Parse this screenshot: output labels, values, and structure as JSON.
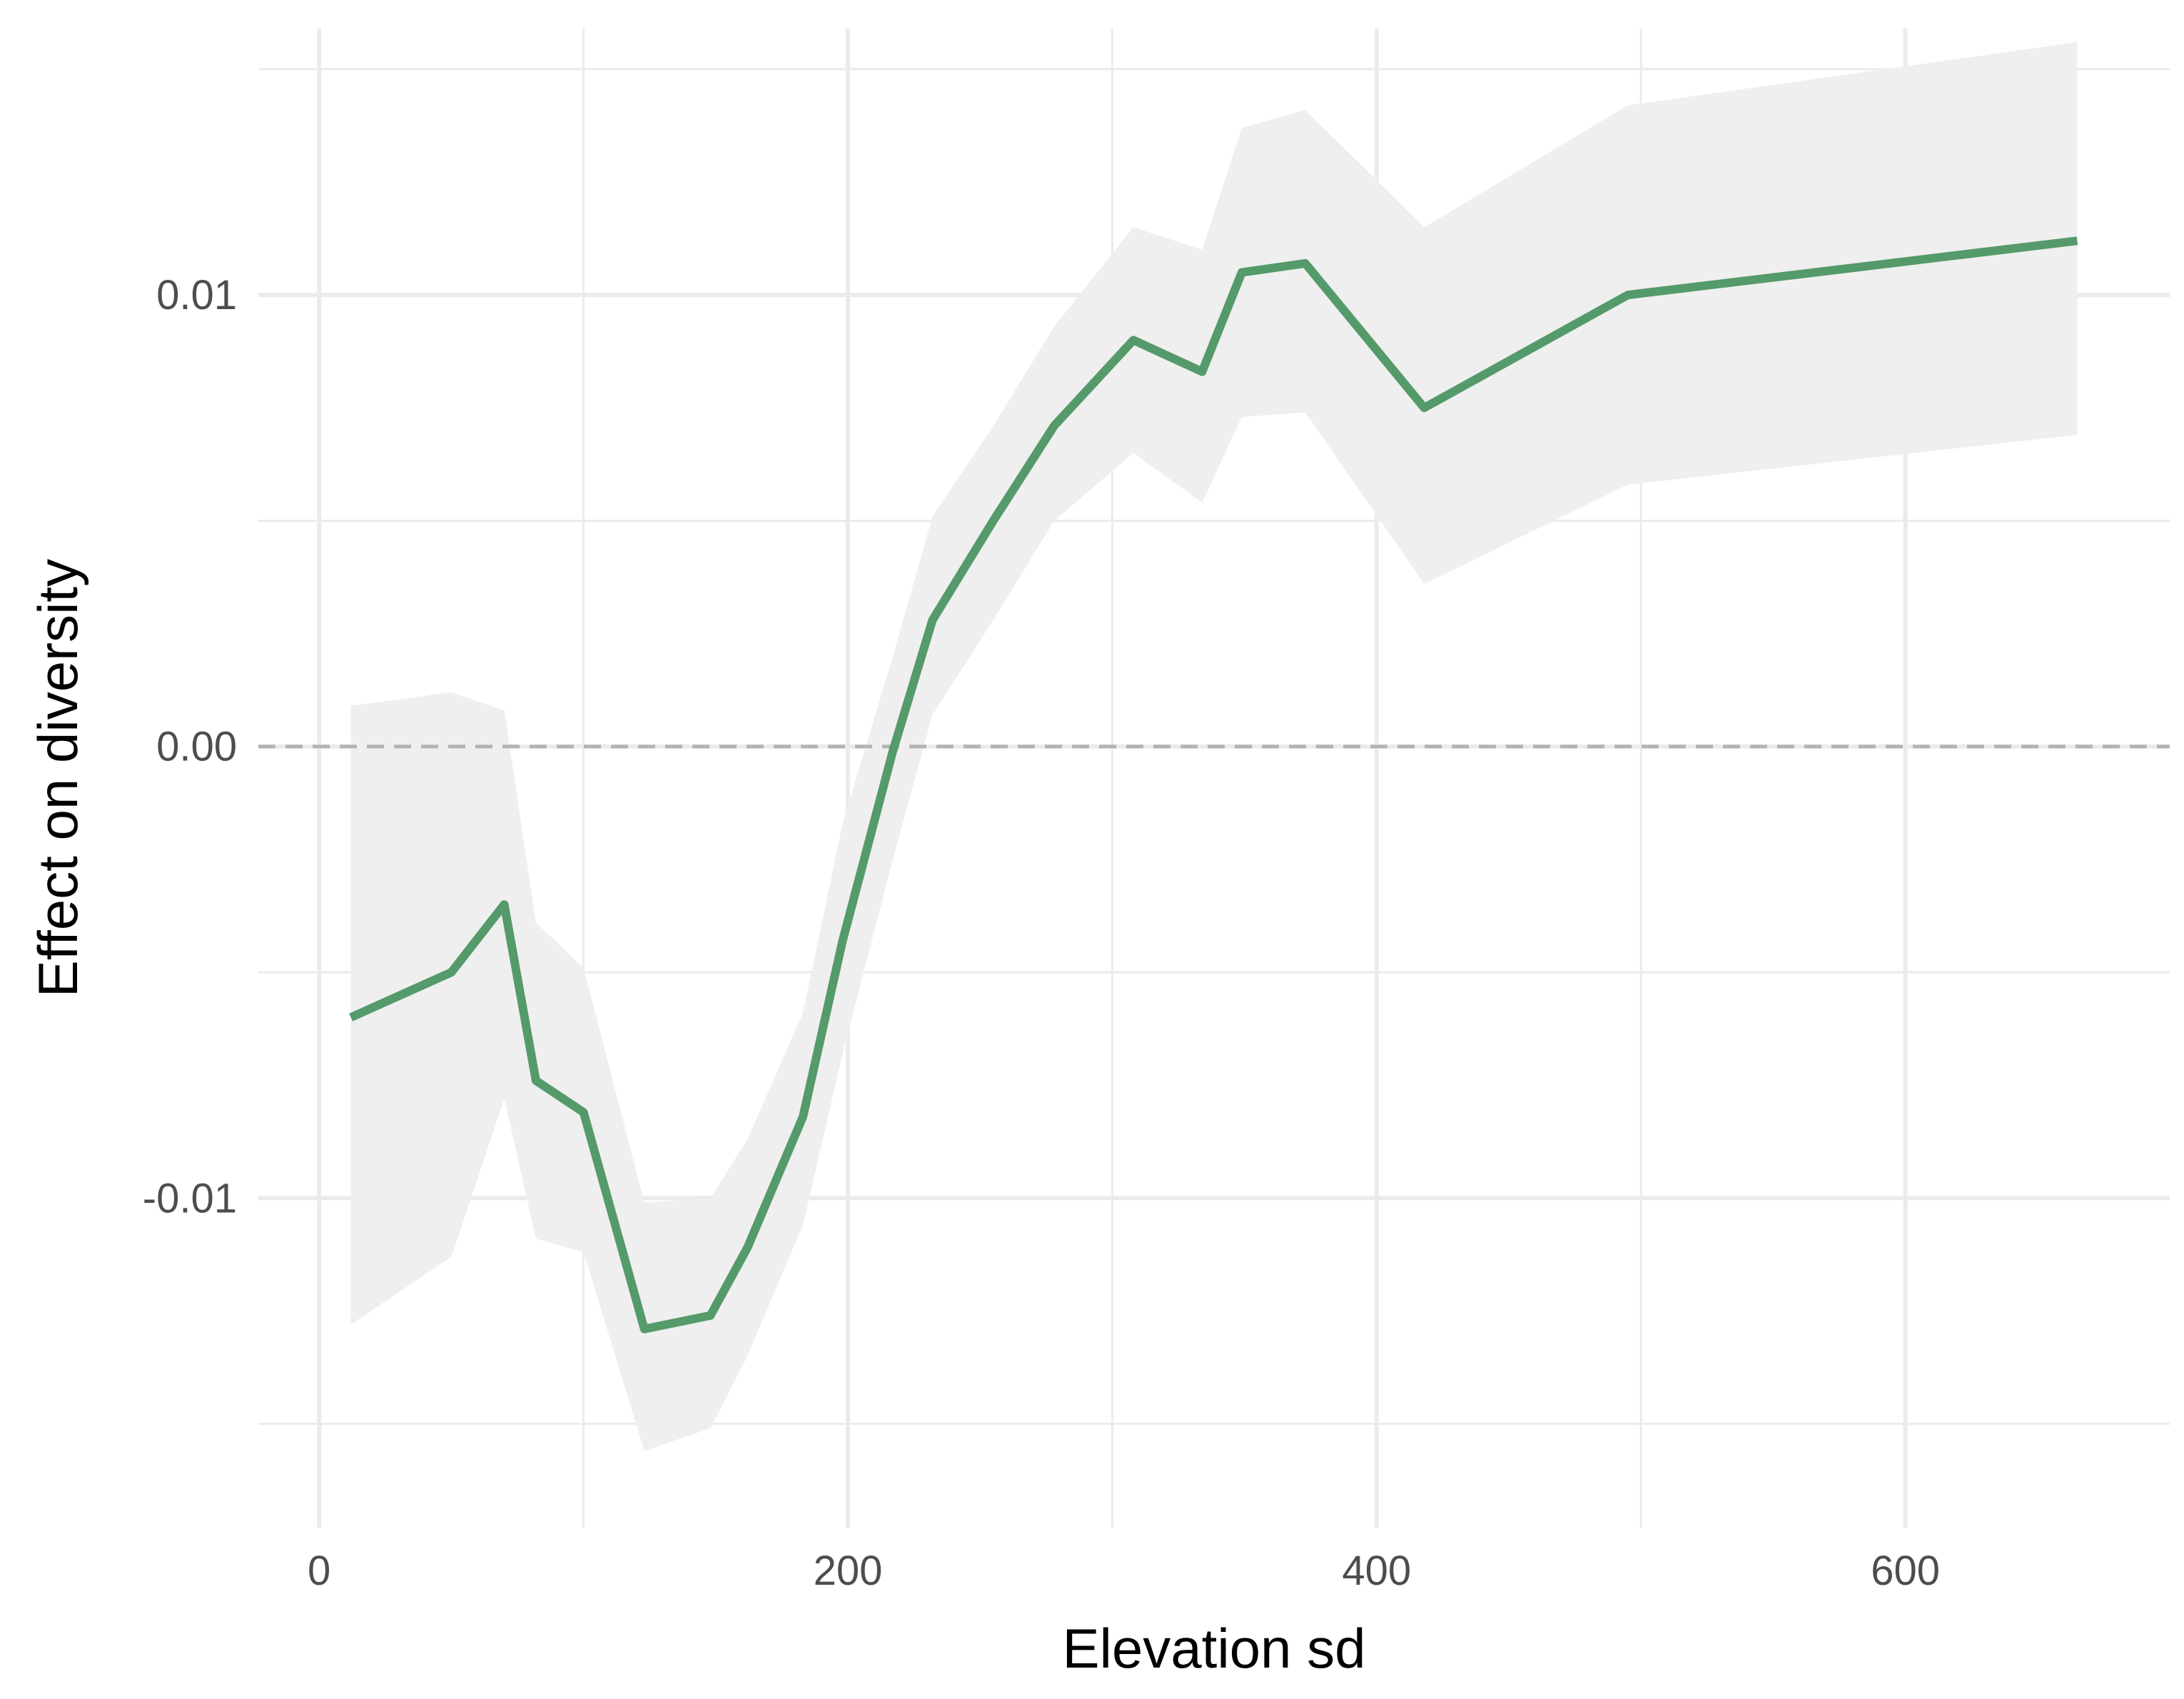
{
  "chart_data": {
    "type": "line",
    "title": "",
    "xlabel": "Elevation sd",
    "ylabel": "Effect on diversity",
    "xlim": [
      -23,
      700
    ],
    "ylim": [
      -0.0173,
      0.0159
    ],
    "x_ticks": [
      0,
      200,
      400,
      600
    ],
    "x_tick_labels": [
      "0",
      "200",
      "400",
      "600"
    ],
    "x_minor_ticks": [
      100,
      300,
      500
    ],
    "y_ticks": [
      -0.01,
      0.0,
      0.01
    ],
    "y_tick_labels": [
      "-0.01",
      "0.00",
      "0.01"
    ],
    "y_minor_ticks": [
      -0.015,
      -0.005,
      0.005,
      0.015
    ],
    "grid": true,
    "reference_line": {
      "y": 0,
      "style": "dashed",
      "color": "#b3b3b3"
    },
    "line_color": "#559a6a",
    "ribbon_color": "#efefef",
    "series": [
      {
        "x": [
          12,
          50,
          70,
          82,
          100,
          123,
          148,
          162,
          183,
          198,
          217,
          232,
          255,
          278,
          308,
          334,
          349,
          373,
          418,
          495,
          665
        ],
        "y": [
          -0.006,
          -0.005,
          -0.0035,
          -0.0074,
          -0.0081,
          -0.0129,
          -0.0126,
          -0.0111,
          -0.0082,
          -0.0043,
          -0.0001,
          0.0028,
          0.005,
          0.0071,
          0.009,
          0.0083,
          0.0105,
          0.0107,
          0.0075,
          0.01,
          0.0112
        ],
        "lower": [
          -0.0128,
          -0.0113,
          -0.0078,
          -0.0109,
          -0.0112,
          -0.0156,
          -0.0151,
          -0.0135,
          -0.0106,
          -0.0068,
          -0.0025,
          0.0007,
          0.0028,
          0.005,
          0.0065,
          0.0054,
          0.0073,
          0.0074,
          0.0036,
          0.0058,
          0.0069
        ],
        "upper": [
          0.0009,
          0.0012,
          0.0008,
          -0.0039,
          -0.0049,
          -0.0101,
          -0.01,
          -0.0087,
          -0.0059,
          -0.0017,
          0.002,
          0.0051,
          0.0071,
          0.0093,
          0.0115,
          0.011,
          0.0137,
          0.0141,
          0.0115,
          0.0142,
          0.0156
        ]
      }
    ]
  }
}
